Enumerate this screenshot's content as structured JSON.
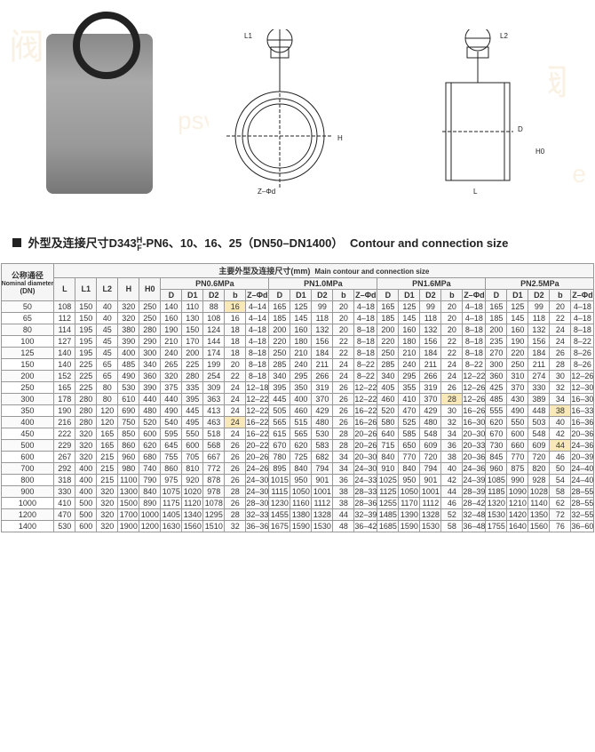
{
  "watermarks": [
    "阀",
    "psva",
    "阀",
    "e"
  ],
  "title": {
    "main_zh": "外型及连接尺寸D343",
    "frac_top": "H",
    "frac_bot": "F",
    "main_suffix": "-PN6、10、16、25（DN50–DN1400）",
    "main_en": "Contour and connection size"
  },
  "diagram_labels": {
    "L1": "L1",
    "L2": "L2",
    "H": "H",
    "H0": "H0",
    "D": "D",
    "L": "L",
    "Zphi": "Z–Φd"
  },
  "table": {
    "header_main_zh": "主要外型及连接尺寸(mm)",
    "header_main_en": "Main contour and connection size",
    "dn_zh": "公称通径",
    "dn_en": "Nominal diameter",
    "dn_unit": "(DN)",
    "base_cols": [
      "L",
      "L1",
      "L2",
      "H",
      "H0"
    ],
    "groups": [
      "PN0.6MPa",
      "PN1.0MPa",
      "PN1.6MPa",
      "PN2.5MPa"
    ],
    "sub_cols": [
      "D",
      "D1",
      "D2",
      "b",
      "Z–Φd"
    ],
    "rows": [
      {
        "dn": "50",
        "b": [
          "108",
          "150",
          "40",
          "320",
          "250"
        ],
        "g1": [
          "140",
          "110",
          "88",
          "16",
          "4–14"
        ],
        "g2": [
          "165",
          "125",
          "99",
          "20",
          "4–18"
        ],
        "g3": [
          "165",
          "125",
          "99",
          "20",
          "4–18"
        ],
        "g4": [
          "165",
          "125",
          "99",
          "20",
          "4–18"
        ],
        "hl": [
          [
            "g1",
            3
          ]
        ]
      },
      {
        "dn": "65",
        "b": [
          "112",
          "150",
          "40",
          "320",
          "250"
        ],
        "g1": [
          "160",
          "130",
          "108",
          "16",
          "4–14"
        ],
        "g2": [
          "185",
          "145",
          "118",
          "20",
          "4–18"
        ],
        "g3": [
          "185",
          "145",
          "118",
          "20",
          "4–18"
        ],
        "g4": [
          "185",
          "145",
          "118",
          "22",
          "4–18"
        ]
      },
      {
        "dn": "80",
        "b": [
          "114",
          "195",
          "45",
          "380",
          "280"
        ],
        "g1": [
          "190",
          "150",
          "124",
          "18",
          "4–18"
        ],
        "g2": [
          "200",
          "160",
          "132",
          "20",
          "8–18"
        ],
        "g3": [
          "200",
          "160",
          "132",
          "20",
          "8–18"
        ],
        "g4": [
          "200",
          "160",
          "132",
          "24",
          "8–18"
        ]
      },
      {
        "dn": "100",
        "b": [
          "127",
          "195",
          "45",
          "390",
          "290"
        ],
        "g1": [
          "210",
          "170",
          "144",
          "18",
          "4–18"
        ],
        "g2": [
          "220",
          "180",
          "156",
          "22",
          "8–18"
        ],
        "g3": [
          "220",
          "180",
          "156",
          "22",
          "8–18"
        ],
        "g4": [
          "235",
          "190",
          "156",
          "24",
          "8–22"
        ]
      },
      {
        "dn": "125",
        "b": [
          "140",
          "195",
          "45",
          "400",
          "300"
        ],
        "g1": [
          "240",
          "200",
          "174",
          "18",
          "8–18"
        ],
        "g2": [
          "250",
          "210",
          "184",
          "22",
          "8–18"
        ],
        "g3": [
          "250",
          "210",
          "184",
          "22",
          "8–18"
        ],
        "g4": [
          "270",
          "220",
          "184",
          "26",
          "8–26"
        ]
      },
      {
        "dn": "150",
        "b": [
          "140",
          "225",
          "65",
          "485",
          "340"
        ],
        "g1": [
          "265",
          "225",
          "199",
          "20",
          "8–18"
        ],
        "g2": [
          "285",
          "240",
          "211",
          "24",
          "8–22"
        ],
        "g3": [
          "285",
          "240",
          "211",
          "24",
          "8–22"
        ],
        "g4": [
          "300",
          "250",
          "211",
          "28",
          "8–26"
        ]
      },
      {
        "dn": "200",
        "b": [
          "152",
          "225",
          "65",
          "490",
          "360"
        ],
        "g1": [
          "320",
          "280",
          "254",
          "22",
          "8–18"
        ],
        "g2": [
          "340",
          "295",
          "266",
          "24",
          "8–22"
        ],
        "g3": [
          "340",
          "295",
          "266",
          "24",
          "12–22"
        ],
        "g4": [
          "360",
          "310",
          "274",
          "30",
          "12–26"
        ]
      },
      {
        "dn": "250",
        "b": [
          "165",
          "225",
          "80",
          "530",
          "390"
        ],
        "g1": [
          "375",
          "335",
          "309",
          "24",
          "12–18"
        ],
        "g2": [
          "395",
          "350",
          "319",
          "26",
          "12–22"
        ],
        "g3": [
          "405",
          "355",
          "319",
          "26",
          "12–26"
        ],
        "g4": [
          "425",
          "370",
          "330",
          "32",
          "12–30"
        ]
      },
      {
        "dn": "300",
        "b": [
          "178",
          "280",
          "80",
          "610",
          "440"
        ],
        "g1": [
          "440",
          "395",
          "363",
          "24",
          "12–22"
        ],
        "g2": [
          "445",
          "400",
          "370",
          "26",
          "12–22"
        ],
        "g3": [
          "460",
          "410",
          "370",
          "28",
          "12–26"
        ],
        "g4": [
          "485",
          "430",
          "389",
          "34",
          "16–30"
        ],
        "hl": [
          [
            "g3",
            3
          ]
        ]
      },
      {
        "dn": "350",
        "b": [
          "190",
          "280",
          "120",
          "690",
          "480"
        ],
        "g1": [
          "490",
          "445",
          "413",
          "24",
          "12–22"
        ],
        "g2": [
          "505",
          "460",
          "429",
          "26",
          "16–22"
        ],
        "g3": [
          "520",
          "470",
          "429",
          "30",
          "16–26"
        ],
        "g4": [
          "555",
          "490",
          "448",
          "38",
          "16–33"
        ],
        "hl": [
          [
            "g4",
            3
          ]
        ]
      },
      {
        "dn": "400",
        "b": [
          "216",
          "280",
          "120",
          "750",
          "520"
        ],
        "g1": [
          "540",
          "495",
          "463",
          "24",
          "16–22"
        ],
        "g2": [
          "565",
          "515",
          "480",
          "26",
          "16–26"
        ],
        "g3": [
          "580",
          "525",
          "480",
          "32",
          "16–30"
        ],
        "g4": [
          "620",
          "550",
          "503",
          "40",
          "16–36"
        ],
        "hl": [
          [
            "g1",
            3
          ]
        ]
      },
      {
        "dn": "450",
        "b": [
          "222",
          "320",
          "165",
          "850",
          "600"
        ],
        "g1": [
          "595",
          "550",
          "518",
          "24",
          "16–22"
        ],
        "g2": [
          "615",
          "565",
          "530",
          "28",
          "20–26"
        ],
        "g3": [
          "640",
          "585",
          "548",
          "34",
          "20–30"
        ],
        "g4": [
          "670",
          "600",
          "548",
          "42",
          "20–36"
        ]
      },
      {
        "dn": "500",
        "b": [
          "229",
          "320",
          "165",
          "860",
          "620"
        ],
        "g1": [
          "645",
          "600",
          "568",
          "26",
          "20–22"
        ],
        "g2": [
          "670",
          "620",
          "583",
          "28",
          "20–26"
        ],
        "g3": [
          "715",
          "650",
          "609",
          "36",
          "20–33"
        ],
        "g4": [
          "730",
          "660",
          "609",
          "44",
          "24–36"
        ],
        "hl": [
          [
            "g4",
            3
          ]
        ]
      },
      {
        "dn": "600",
        "b": [
          "267",
          "320",
          "215",
          "960",
          "680"
        ],
        "g1": [
          "755",
          "705",
          "667",
          "26",
          "20–26"
        ],
        "g2": [
          "780",
          "725",
          "682",
          "34",
          "20–30"
        ],
        "g3": [
          "840",
          "770",
          "720",
          "38",
          "20–36"
        ],
        "g4": [
          "845",
          "770",
          "720",
          "46",
          "20–39"
        ]
      },
      {
        "dn": "700",
        "b": [
          "292",
          "400",
          "215",
          "980",
          "740"
        ],
        "g1": [
          "860",
          "810",
          "772",
          "26",
          "24–26"
        ],
        "g2": [
          "895",
          "840",
          "794",
          "34",
          "24–30"
        ],
        "g3": [
          "910",
          "840",
          "794",
          "40",
          "24–36"
        ],
        "g4": [
          "960",
          "875",
          "820",
          "50",
          "24–40"
        ]
      },
      {
        "dn": "800",
        "b": [
          "318",
          "400",
          "215",
          "1100",
          "790"
        ],
        "g1": [
          "975",
          "920",
          "878",
          "26",
          "24–30"
        ],
        "g2": [
          "1015",
          "950",
          "901",
          "36",
          "24–33"
        ],
        "g3": [
          "1025",
          "950",
          "901",
          "42",
          "24–39"
        ],
        "g4": [
          "1085",
          "990",
          "928",
          "54",
          "24–40"
        ]
      },
      {
        "dn": "900",
        "b": [
          "330",
          "400",
          "320",
          "1300",
          "840"
        ],
        "g1": [
          "1075",
          "1020",
          "978",
          "28",
          "24–30"
        ],
        "g2": [
          "1115",
          "1050",
          "1001",
          "38",
          "28–33"
        ],
        "g3": [
          "1125",
          "1050",
          "1001",
          "44",
          "28–39"
        ],
        "g4": [
          "1185",
          "1090",
          "1028",
          "58",
          "28–55"
        ]
      },
      {
        "dn": "1000",
        "b": [
          "410",
          "500",
          "320",
          "1500",
          "890"
        ],
        "g1": [
          "1175",
          "1120",
          "1078",
          "26",
          "28–30"
        ],
        "g2": [
          "1230",
          "1160",
          "1112",
          "38",
          "28–36"
        ],
        "g3": [
          "1255",
          "1170",
          "1112",
          "46",
          "28–42"
        ],
        "g4": [
          "1320",
          "1210",
          "1140",
          "62",
          "28–55"
        ]
      },
      {
        "dn": "1200",
        "b": [
          "470",
          "500",
          "320",
          "1700",
          "1000"
        ],
        "g1": [
          "1405",
          "1340",
          "1295",
          "28",
          "32–33"
        ],
        "g2": [
          "1455",
          "1380",
          "1328",
          "44",
          "32–39"
        ],
        "g3": [
          "1485",
          "1390",
          "1328",
          "52",
          "32–48"
        ],
        "g4": [
          "1530",
          "1420",
          "1350",
          "72",
          "32–55"
        ]
      },
      {
        "dn": "1400",
        "b": [
          "530",
          "600",
          "320",
          "1900",
          "1200"
        ],
        "g1": [
          "1630",
          "1560",
          "1510",
          "32",
          "36–36"
        ],
        "g2": [
          "1675",
          "1590",
          "1530",
          "48",
          "36–42"
        ],
        "g3": [
          "1685",
          "1590",
          "1530",
          "58",
          "36–48"
        ],
        "g4": [
          "1755",
          "1640",
          "1560",
          "76",
          "36–60"
        ]
      }
    ]
  }
}
